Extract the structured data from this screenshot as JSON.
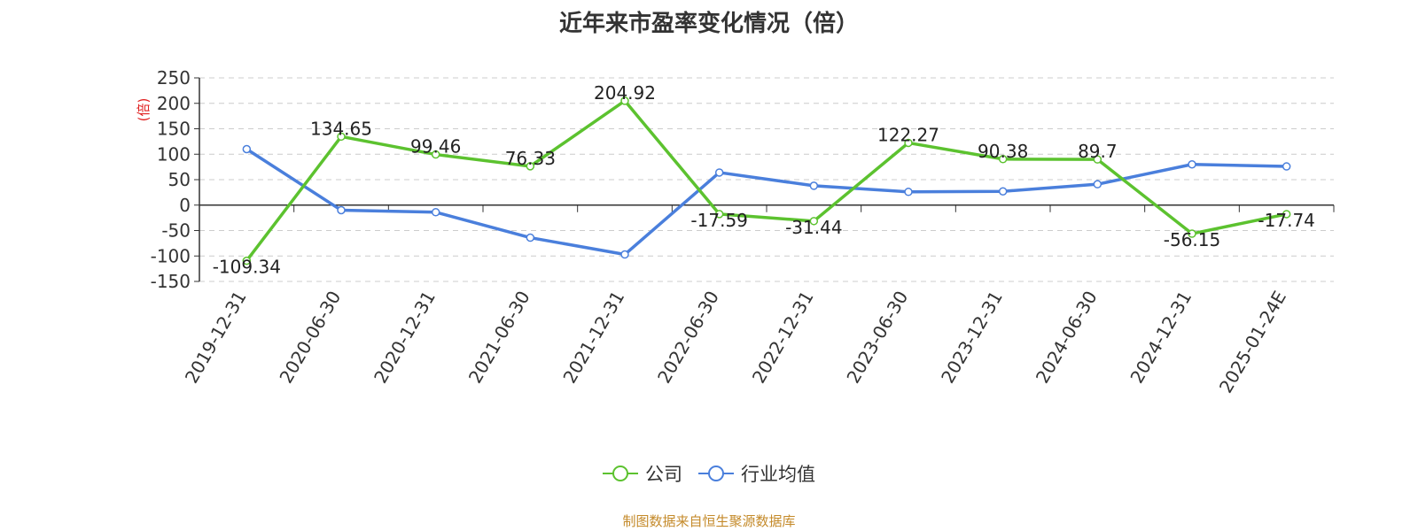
{
  "chart_data": {
    "type": "line",
    "title": "近年来市盈率变化情况（倍）",
    "ylabel": "(倍)",
    "ylim": [
      -150,
      250
    ],
    "yticks": [
      250,
      200,
      150,
      100,
      50,
      0,
      -50,
      -100,
      -150
    ],
    "categories": [
      "2019-12-31",
      "2020-06-30",
      "2020-12-31",
      "2021-06-30",
      "2021-12-31",
      "2022-06-30",
      "2022-12-31",
      "2023-06-30",
      "2023-12-31",
      "2024-06-30",
      "2024-12-31",
      "2025-01-24E"
    ],
    "grid": true,
    "legend_position": "bottom-center",
    "series": [
      {
        "name": "公司",
        "color": "#5cc22f",
        "values": [
          -109.34,
          134.65,
          99.46,
          76.33,
          204.92,
          -17.59,
          -31.44,
          122.27,
          90.38,
          89.7,
          -56.15,
          -17.74
        ],
        "labels": [
          "-109.34",
          "134.65",
          "99.46",
          "76.33",
          "204.92",
          "-17.59",
          "-31.44",
          "122.27",
          "90.38",
          "89.7",
          "-56.15",
          "-17.74"
        ]
      },
      {
        "name": "行业均值",
        "color": "#4a7fdc",
        "values": [
          110,
          -10,
          -14,
          -64,
          -97,
          64,
          38,
          26,
          27,
          41,
          80,
          76
        ]
      }
    ]
  },
  "source_note": "制图数据来自恒生聚源数据库"
}
